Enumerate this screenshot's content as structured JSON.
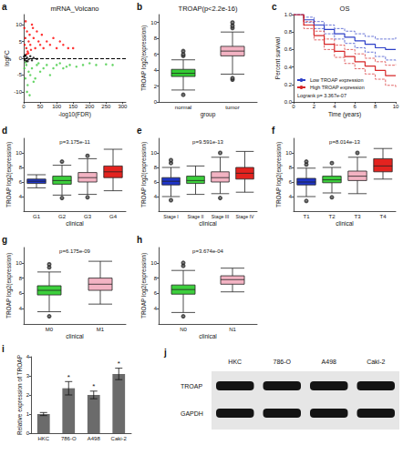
{
  "chart_data": [
    {
      "panel": "a",
      "type": "scatter",
      "title": "mRNA_Volcano",
      "x_label": "-log10(FDR)",
      "y_label": "logFC",
      "xlim": [
        0,
        310
      ],
      "xticks": [
        0,
        50,
        100,
        150,
        200,
        250,
        300
      ],
      "ylim": [
        -13,
        13
      ],
      "yticks": [
        -10,
        -5,
        0,
        5,
        10
      ],
      "reference_line": 0,
      "series": [
        {
          "color": "#ff0000",
          "x": [
            2,
            5,
            8,
            10,
            12,
            15,
            18,
            20,
            25,
            30,
            35,
            40,
            45,
            50,
            55,
            60,
            70,
            80,
            90,
            100,
            110,
            120,
            135,
            150,
            6,
            14,
            22,
            28,
            3,
            9
          ],
          "values": [
            9,
            6,
            3,
            8,
            2,
            5,
            7,
            4,
            10,
            6,
            3,
            8,
            5,
            4,
            7,
            3,
            5,
            4,
            6,
            3,
            5,
            4,
            3,
            3,
            11,
            1.5,
            2.5,
            9,
            4,
            1.2
          ]
        },
        {
          "color": "#44cc44",
          "x": [
            2,
            5,
            8,
            12,
            15,
            20,
            25,
            30,
            40,
            50,
            60,
            70,
            80,
            100,
            120,
            140,
            160,
            180,
            200,
            220,
            250,
            270,
            10,
            35,
            45,
            90,
            110,
            130,
            6,
            18
          ],
          "values": [
            -3,
            -6,
            -2,
            -8,
            -4,
            -5,
            -3,
            -7,
            -2,
            -4,
            -3,
            -2,
            -5,
            -2,
            -3,
            -2,
            -2.5,
            -2,
            -1.5,
            -2,
            -1.8,
            -2,
            -10,
            -6,
            -1.5,
            -3,
            -1.5,
            -2.5,
            -1.2,
            -11
          ]
        },
        {
          "color": "#000000",
          "x": [
            1,
            3,
            5,
            8,
            10,
            15,
            20,
            25,
            30,
            40,
            4,
            12
          ],
          "values": [
            0.5,
            -0.5,
            0.8,
            -0.8,
            0.2,
            -0.3,
            0.6,
            -0.6,
            0.1,
            -0.2,
            0.9,
            -0.9
          ]
        }
      ]
    },
    {
      "panel": "b",
      "type": "boxplot",
      "title": "TROAP(p<2.2e-16)",
      "x_label": "group",
      "y_label": "TROAP log2(expression)",
      "categories": [
        "normal",
        "tumor"
      ],
      "colors": [
        "#33cc33",
        "#f3b3c3"
      ],
      "boxes": [
        [
          1.5,
          3.2,
          3.6,
          4.1,
          5.3
        ],
        [
          3.5,
          5.8,
          6.4,
          7.0,
          8.8
        ]
      ],
      "outliers": [
        [
          0.9,
          5.8,
          6.0,
          6.4
        ],
        [
          2.8,
          3.0,
          9.3,
          9.6,
          10.0
        ]
      ],
      "ylim": [
        0,
        11
      ],
      "yticks": [
        0,
        2,
        4,
        6,
        8,
        10
      ]
    },
    {
      "panel": "c",
      "type": "line",
      "title": "OS",
      "x_label": "Time (years)",
      "y_label": "Percent survival",
      "annotation": "Logrank p= 3.367e-07",
      "legend": "lower left",
      "line_style": "step",
      "xlim": [
        0,
        10
      ],
      "xticks": [
        0,
        2,
        4,
        6,
        8,
        10
      ],
      "ylim": [
        0,
        1
      ],
      "yticks": [
        {
          "value": 0,
          "label": "0.0"
        },
        {
          "value": 0.2,
          "label": "0.2"
        },
        {
          "value": 0.4,
          "label": "0.4"
        },
        {
          "value": 0.6,
          "label": "0.6"
        },
        {
          "value": 0.8,
          "label": "0.8"
        },
        {
          "value": 1,
          "label": "1.0"
        }
      ],
      "x": [
        0,
        1,
        2,
        3,
        4,
        5,
        6,
        7,
        8,
        9,
        10
      ],
      "series": [
        {
          "name": "Low TROAP expression",
          "color": "#2c3fc7",
          "values": [
            1,
            0.94,
            0.88,
            0.83,
            0.78,
            0.74,
            0.7,
            0.66,
            0.62,
            0.6,
            0.6
          ],
          "lower": [
            1,
            0.91,
            0.84,
            0.78,
            0.72,
            0.67,
            0.62,
            0.57,
            0.52,
            0.48,
            0.46
          ],
          "upper": [
            1,
            0.97,
            0.92,
            0.88,
            0.84,
            0.81,
            0.78,
            0.75,
            0.72,
            0.72,
            0.74
          ]
        },
        {
          "name": "High TROAP expression",
          "color": "#d62728",
          "values": [
            1,
            0.88,
            0.76,
            0.66,
            0.58,
            0.52,
            0.46,
            0.41,
            0.36,
            0.3,
            0.3
          ],
          "lower": [
            1,
            0.84,
            0.71,
            0.6,
            0.51,
            0.44,
            0.38,
            0.32,
            0.26,
            0.19,
            0.17
          ],
          "upper": [
            1,
            0.92,
            0.81,
            0.72,
            0.65,
            0.6,
            0.55,
            0.5,
            0.46,
            0.42,
            0.43
          ]
        }
      ]
    },
    {
      "panel": "d",
      "type": "boxplot",
      "annotation": "p=3.175e-11",
      "x_label": "clinical",
      "y_label": "TROAP log2(expression)",
      "categories": [
        "G1",
        "G2",
        "G3",
        "G4"
      ],
      "colors": [
        "#1f35c8",
        "#3ccf3c",
        "#f3b3c3",
        "#e3231f"
      ],
      "boxes": [
        [
          5.2,
          5.8,
          6.1,
          6.4,
          7.0
        ],
        [
          4.2,
          5.7,
          6.2,
          6.8,
          8.3
        ],
        [
          4.3,
          6.0,
          6.6,
          7.3,
          9.2
        ],
        [
          4.8,
          6.6,
          7.4,
          8.2,
          10.5
        ]
      ],
      "outliers": [
        [],
        [
          3.8,
          8.8
        ],
        [
          3.9,
          9.6
        ],
        []
      ],
      "ylim": [
        2,
        12
      ],
      "yticks": [
        4,
        6,
        8,
        10
      ]
    },
    {
      "panel": "e",
      "type": "boxplot",
      "annotation": "p=9.591e-13",
      "x_label": "clinical",
      "y_label": "TROAP log2(expression)",
      "categories": [
        "Stage I",
        "Stage II",
        "Stage III",
        "Stage IV"
      ],
      "colors": [
        "#1f35c8",
        "#3ccf3c",
        "#f3b3c3",
        "#e3231f"
      ],
      "boxes": [
        [
          4.0,
          5.6,
          6.1,
          6.6,
          8.0
        ],
        [
          4.3,
          5.8,
          6.2,
          6.8,
          8.2
        ],
        [
          4.4,
          6.0,
          6.6,
          7.4,
          9.4
        ],
        [
          4.6,
          6.4,
          7.2,
          8.0,
          10.2
        ]
      ],
      "outliers": [
        [
          3.5,
          8.6,
          9.0
        ],
        [],
        [
          3.8,
          10.0
        ],
        []
      ],
      "ylim": [
        2,
        12
      ],
      "yticks": [
        4,
        6,
        8,
        10
      ]
    },
    {
      "panel": "f",
      "type": "boxplot",
      "annotation": "p=8.014e-13",
      "x_label": "clinical",
      "y_label": "TROAP log2(expression)",
      "categories": [
        "T1",
        "T2",
        "T3",
        "T4"
      ],
      "colors": [
        "#1f35c8",
        "#3ccf3c",
        "#f3b3c3",
        "#e3231f"
      ],
      "boxes": [
        [
          4.0,
          5.6,
          6.0,
          6.5,
          7.9
        ],
        [
          4.5,
          5.9,
          6.3,
          6.8,
          8.0
        ],
        [
          4.4,
          6.2,
          6.8,
          7.5,
          9.4
        ],
        [
          6.4,
          7.4,
          8.2,
          9.2,
          10.6
        ]
      ],
      "outliers": [
        [
          3.4,
          8.4,
          8.8
        ],
        [
          3.9,
          8.6
        ],
        [
          10.0
        ],
        []
      ],
      "ylim": [
        2,
        12
      ],
      "yticks": [
        4,
        6,
        8,
        10
      ]
    },
    {
      "panel": "g",
      "type": "boxplot",
      "annotation": "p=6.175e-09",
      "x_label": "clinical",
      "y_label": "TROAP log2(expression)",
      "categories": [
        "M0",
        "M1"
      ],
      "colors": [
        "#3ccf3c",
        "#f3b3c3"
      ],
      "boxes": [
        [
          3.6,
          5.8,
          6.4,
          7.0,
          8.8
        ],
        [
          4.6,
          6.4,
          7.2,
          8.0,
          10.2
        ]
      ],
      "outliers": [
        [
          3.0,
          9.4,
          9.8
        ],
        []
      ],
      "ylim": [
        2,
        12
      ],
      "yticks": [
        4,
        6,
        8,
        10
      ]
    },
    {
      "panel": "h",
      "type": "boxplot",
      "annotation": "p=3.674e-04",
      "x_label": "clinical",
      "y_label": "TROAP log2(expression)",
      "categories": [
        "N0",
        "N1"
      ],
      "colors": [
        "#3ccf3c",
        "#f3b3c3"
      ],
      "boxes": [
        [
          3.5,
          5.9,
          6.5,
          7.1,
          9.0
        ],
        [
          6.2,
          7.2,
          7.8,
          8.3,
          9.3
        ]
      ],
      "outliers": [
        [
          3.0,
          9.6,
          10.0
        ],
        []
      ],
      "ylim": [
        2,
        12
      ],
      "yticks": [
        4,
        6,
        8,
        10
      ]
    },
    {
      "panel": "i",
      "type": "bar",
      "y_label": "Relative expression of TROAP",
      "categories": [
        "HKC",
        "786-O",
        "A498",
        "Caki-2"
      ],
      "values": [
        1,
        2.35,
        2.0,
        3.1
      ],
      "errors": [
        0.08,
        0.35,
        0.2,
        0.3
      ],
      "significance": [
        null,
        "*",
        "*",
        "*"
      ],
      "color": "#6b6b6b",
      "ylim": [
        0,
        4
      ],
      "yticks": [
        0,
        1,
        2,
        3,
        4
      ]
    }
  ],
  "blot": {
    "panel": "j",
    "columns": [
      "HKC",
      "786-O",
      "A498",
      "Caki-2"
    ],
    "rows": [
      "TROAP",
      "GAPDH"
    ]
  }
}
